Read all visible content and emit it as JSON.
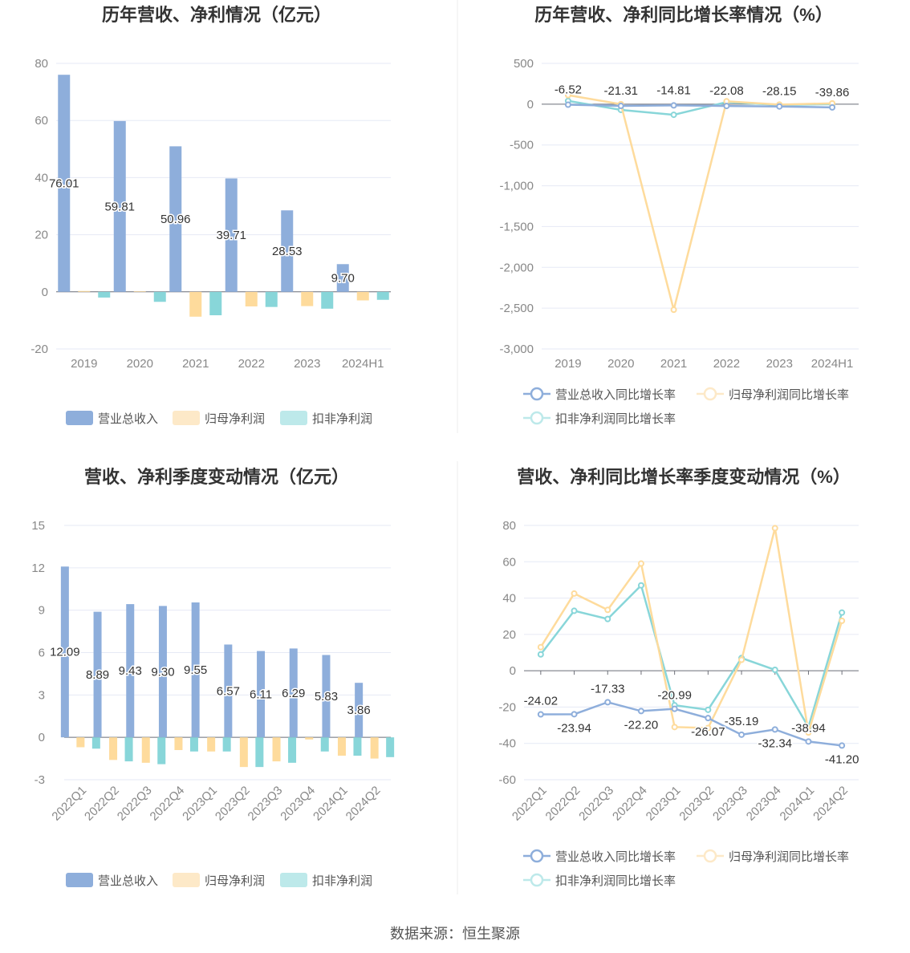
{
  "colors": {
    "revenue": "#8eaedb",
    "net": "#fedb9c",
    "deducted": "#88d6d9",
    "legend_net": "#fde9c8",
    "legend_ded": "#bde9ea"
  },
  "chart_data": [
    {
      "type": "bar",
      "title": "历年营收、净利情况（亿元）",
      "categories": [
        "2019",
        "2020",
        "2021",
        "2022",
        "2023",
        "2024H1"
      ],
      "ylim": [
        -20,
        80
      ],
      "yticks": [
        80,
        60,
        40,
        20,
        0,
        -20
      ],
      "series": [
        {
          "name": "营业总收入",
          "values": [
            76.01,
            59.81,
            50.96,
            39.71,
            28.53,
            9.7
          ],
          "labels": [
            "76.01",
            "59.81",
            "50.96",
            "39.71",
            "28.53",
            "9.70"
          ]
        },
        {
          "name": "归母净利润",
          "values": [
            0.3,
            0.2,
            -8.7,
            -5.1,
            -5.0,
            -3.0
          ]
        },
        {
          "name": "扣非净利润",
          "values": [
            -2.0,
            -3.5,
            -8.2,
            -5.3,
            -5.9,
            -2.8
          ]
        }
      ]
    },
    {
      "type": "line",
      "title": "历年营收、净利同比增长率情况（%）",
      "categories": [
        "2019",
        "2020",
        "2021",
        "2022",
        "2023",
        "2024H1"
      ],
      "ylim": [
        -3000,
        500
      ],
      "yticks": [
        "500",
        "0",
        "-500",
        "-1,000",
        "-1,500",
        "-2,000",
        "-2,500",
        "-3,000"
      ],
      "series": [
        {
          "name": "营业总收入同比增长率",
          "values": [
            -6.52,
            -21.31,
            -14.81,
            -22.08,
            -28.15,
            -39.86
          ],
          "labels": [
            "-6.52",
            "-21.31",
            "-14.81",
            "-22.08",
            "-28.15",
            "-39.86"
          ]
        },
        {
          "name": "归母净利润同比增长率",
          "values": [
            110,
            0,
            -2520,
            35,
            -5,
            10
          ]
        },
        {
          "name": "扣非净利润同比增长率",
          "values": [
            40,
            -70,
            -130,
            25,
            -10,
            0
          ]
        }
      ]
    },
    {
      "type": "bar",
      "title": "营收、净利季度变动情况（亿元）",
      "categories": [
        "2022Q1",
        "2022Q2",
        "2022Q3",
        "2022Q4",
        "2023Q1",
        "2023Q2",
        "2023Q3",
        "2023Q4",
        "2024Q1",
        "2024Q2"
      ],
      "ylim": [
        -3,
        15
      ],
      "yticks": [
        15,
        12,
        9,
        6,
        3,
        0,
        -3
      ],
      "series": [
        {
          "name": "营业总收入",
          "values": [
            12.09,
            8.89,
            9.43,
            9.3,
            9.55,
            6.57,
            6.11,
            6.29,
            5.83,
            3.86
          ],
          "labels": [
            "12.09",
            "8.89",
            "9.43",
            "9.30",
            "9.55",
            "6.57",
            "6.11",
            "6.29",
            "5.83",
            "3.86"
          ]
        },
        {
          "name": "归母净利润",
          "values": [
            -0.7,
            -1.6,
            -1.8,
            -0.9,
            -1.0,
            -2.1,
            -1.7,
            -0.15,
            -1.3,
            -1.5
          ]
        },
        {
          "name": "扣非净利润",
          "values": [
            -0.8,
            -1.7,
            -1.9,
            -1.0,
            -1.0,
            -2.1,
            -1.8,
            -1.0,
            -1.3,
            -1.4
          ]
        }
      ]
    },
    {
      "type": "line",
      "title": "营收、净利同比增长率季度变动情况（%）",
      "categories": [
        "2022Q1",
        "2022Q2",
        "2022Q3",
        "2022Q4",
        "2023Q1",
        "2023Q2",
        "2023Q3",
        "2023Q4",
        "2024Q1",
        "2024Q2"
      ],
      "ylim": [
        -60,
        80
      ],
      "yticks": [
        "80",
        "60",
        "40",
        "20",
        "0",
        "-20",
        "-40",
        "-60"
      ],
      "series": [
        {
          "name": "营业总收入同比增长率",
          "values": [
            -24.02,
            -23.94,
            -17.33,
            -22.2,
            -20.99,
            -26.07,
            -35.19,
            -32.34,
            -38.94,
            -41.2
          ],
          "labels": [
            "-24.02",
            "-23.94",
            "-17.33",
            "-22.20",
            "-20.99",
            "-26.07",
            "-35.19",
            "-32.34",
            "-38.94",
            "-41.20"
          ]
        },
        {
          "name": "归母净利润同比增长率",
          "values": [
            13,
            42.5,
            33.5,
            59,
            -31,
            -31.5,
            6,
            78.5,
            -34,
            27.5
          ]
        },
        {
          "name": "扣非净利润同比增长率",
          "values": [
            9,
            33,
            28.5,
            47,
            -19,
            -21.5,
            7,
            0.5,
            -31,
            32
          ]
        }
      ]
    }
  ],
  "source": "数据来源：恒生聚源"
}
